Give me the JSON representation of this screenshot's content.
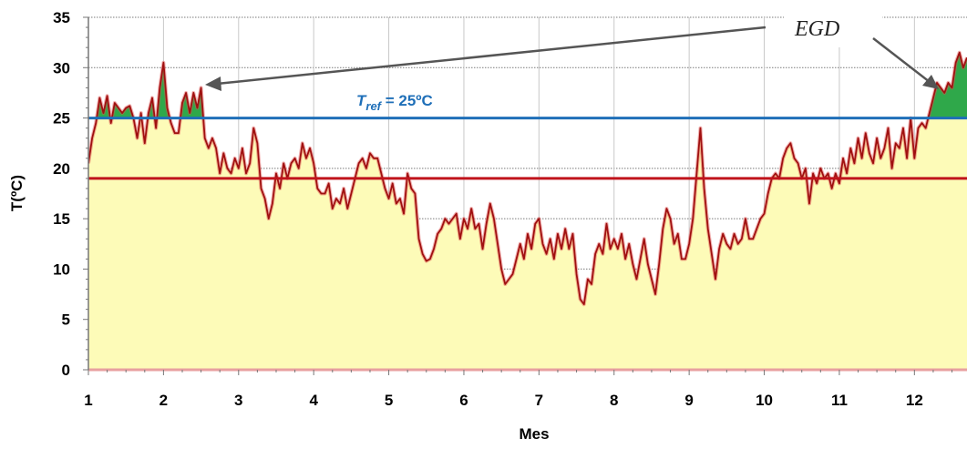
{
  "chart_data": {
    "type": "area",
    "title": "",
    "xlabel": "Mes",
    "ylabel": "T(ºC)",
    "xlim": [
      1,
      12.7
    ],
    "ylim": [
      0,
      35
    ],
    "xticks": [
      1,
      2,
      3,
      4,
      5,
      6,
      7,
      8,
      9,
      10,
      11,
      12
    ],
    "yticks": [
      0,
      5,
      10,
      15,
      20,
      25,
      30,
      35
    ],
    "grid": true,
    "legend": "none",
    "series": [
      {
        "name": "",
        "color": "#a01010",
        "fill": "#fdfbb8",
        "points": [
          [
            1.0,
            20.5
          ],
          [
            1.05,
            23.0
          ],
          [
            1.1,
            24.5
          ],
          [
            1.15,
            27.0
          ],
          [
            1.2,
            25.5
          ],
          [
            1.25,
            27.2
          ],
          [
            1.3,
            24.5
          ],
          [
            1.35,
            26.5
          ],
          [
            1.4,
            26.0
          ],
          [
            1.45,
            25.5
          ],
          [
            1.5,
            26.0
          ],
          [
            1.55,
            26.2
          ],
          [
            1.6,
            25.0
          ],
          [
            1.65,
            23.0
          ],
          [
            1.7,
            25.5
          ],
          [
            1.75,
            22.5
          ],
          [
            1.8,
            25.5
          ],
          [
            1.85,
            27.0
          ],
          [
            1.9,
            24.0
          ],
          [
            1.95,
            28.0
          ],
          [
            2.0,
            30.5
          ],
          [
            2.05,
            26.0
          ],
          [
            2.1,
            24.5
          ],
          [
            2.15,
            23.5
          ],
          [
            2.2,
            23.5
          ],
          [
            2.25,
            26.5
          ],
          [
            2.3,
            27.5
          ],
          [
            2.35,
            25.5
          ],
          [
            2.4,
            27.5
          ],
          [
            2.45,
            26.0
          ],
          [
            2.5,
            28.0
          ],
          [
            2.55,
            23.0
          ],
          [
            2.6,
            22.0
          ],
          [
            2.65,
            23.0
          ],
          [
            2.7,
            22.0
          ],
          [
            2.75,
            19.5
          ],
          [
            2.8,
            21.5
          ],
          [
            2.85,
            20.0
          ],
          [
            2.9,
            19.5
          ],
          [
            2.95,
            21.0
          ],
          [
            3.0,
            20.0
          ],
          [
            3.05,
            22.0
          ],
          [
            3.1,
            19.5
          ],
          [
            3.15,
            20.5
          ],
          [
            3.2,
            24.0
          ],
          [
            3.25,
            22.5
          ],
          [
            3.3,
            18.0
          ],
          [
            3.35,
            17.0
          ],
          [
            3.4,
            15.0
          ],
          [
            3.45,
            16.5
          ],
          [
            3.5,
            19.5
          ],
          [
            3.55,
            18.0
          ],
          [
            3.6,
            20.5
          ],
          [
            3.65,
            19.0
          ],
          [
            3.7,
            20.5
          ],
          [
            3.75,
            21.0
          ],
          [
            3.8,
            20.0
          ],
          [
            3.85,
            22.5
          ],
          [
            3.9,
            21.0
          ],
          [
            3.95,
            22.0
          ],
          [
            4.0,
            20.5
          ],
          [
            4.05,
            18.0
          ],
          [
            4.1,
            17.5
          ],
          [
            4.15,
            17.5
          ],
          [
            4.2,
            18.5
          ],
          [
            4.25,
            16.0
          ],
          [
            4.3,
            17.0
          ],
          [
            4.35,
            16.5
          ],
          [
            4.4,
            18.0
          ],
          [
            4.45,
            16.0
          ],
          [
            4.5,
            17.5
          ],
          [
            4.55,
            19.0
          ],
          [
            4.6,
            20.5
          ],
          [
            4.65,
            21.0
          ],
          [
            4.7,
            20.0
          ],
          [
            4.75,
            21.5
          ],
          [
            4.8,
            21.0
          ],
          [
            4.85,
            21.0
          ],
          [
            4.9,
            19.5
          ],
          [
            4.95,
            18.0
          ],
          [
            5.0,
            17.0
          ],
          [
            5.05,
            18.5
          ],
          [
            5.1,
            16.5
          ],
          [
            5.15,
            17.0
          ],
          [
            5.2,
            15.5
          ],
          [
            5.25,
            19.5
          ],
          [
            5.3,
            18.0
          ],
          [
            5.35,
            17.5
          ],
          [
            5.4,
            13.0
          ],
          [
            5.45,
            11.5
          ],
          [
            5.5,
            10.8
          ],
          [
            5.55,
            11.0
          ],
          [
            5.6,
            12.0
          ],
          [
            5.65,
            13.5
          ],
          [
            5.7,
            14.0
          ],
          [
            5.75,
            15.0
          ],
          [
            5.8,
            14.5
          ],
          [
            5.85,
            15.0
          ],
          [
            5.9,
            15.5
          ],
          [
            5.95,
            13.0
          ],
          [
            6.0,
            15.0
          ],
          [
            6.05,
            14.0
          ],
          [
            6.1,
            16.0
          ],
          [
            6.15,
            14.0
          ],
          [
            6.2,
            14.5
          ],
          [
            6.25,
            12.0
          ],
          [
            6.3,
            14.5
          ],
          [
            6.35,
            16.5
          ],
          [
            6.4,
            15.0
          ],
          [
            6.45,
            12.5
          ],
          [
            6.5,
            10.0
          ],
          [
            6.55,
            8.5
          ],
          [
            6.6,
            9.0
          ],
          [
            6.65,
            9.5
          ],
          [
            6.7,
            11.0
          ],
          [
            6.75,
            12.5
          ],
          [
            6.8,
            11.0
          ],
          [
            6.85,
            13.5
          ],
          [
            6.9,
            12.0
          ],
          [
            6.95,
            14.5
          ],
          [
            7.0,
            15.0
          ],
          [
            7.05,
            12.5
          ],
          [
            7.1,
            11.5
          ],
          [
            7.15,
            13.0
          ],
          [
            7.2,
            11.0
          ],
          [
            7.25,
            13.5
          ],
          [
            7.3,
            12.0
          ],
          [
            7.35,
            14.0
          ],
          [
            7.4,
            12.0
          ],
          [
            7.45,
            13.5
          ],
          [
            7.5,
            9.5
          ],
          [
            7.55,
            7.0
          ],
          [
            7.6,
            6.5
          ],
          [
            7.65,
            9.0
          ],
          [
            7.7,
            8.5
          ],
          [
            7.75,
            11.5
          ],
          [
            7.8,
            12.5
          ],
          [
            7.85,
            11.5
          ],
          [
            7.9,
            14.5
          ],
          [
            7.95,
            12.0
          ],
          [
            8.0,
            13.0
          ],
          [
            8.05,
            12.0
          ],
          [
            8.1,
            13.5
          ],
          [
            8.15,
            11.0
          ],
          [
            8.2,
            12.5
          ],
          [
            8.25,
            10.5
          ],
          [
            8.3,
            9.0
          ],
          [
            8.35,
            11.0
          ],
          [
            8.4,
            13.0
          ],
          [
            8.45,
            10.5
          ],
          [
            8.5,
            9.0
          ],
          [
            8.55,
            7.5
          ],
          [
            8.6,
            10.5
          ],
          [
            8.65,
            14.0
          ],
          [
            8.7,
            16.0
          ],
          [
            8.75,
            15.0
          ],
          [
            8.8,
            12.5
          ],
          [
            8.85,
            13.5
          ],
          [
            8.9,
            11.0
          ],
          [
            8.95,
            11.0
          ],
          [
            9.0,
            12.5
          ],
          [
            9.05,
            15.0
          ],
          [
            9.1,
            19.5
          ],
          [
            9.15,
            24.0
          ],
          [
            9.2,
            18.0
          ],
          [
            9.25,
            14.0
          ],
          [
            9.3,
            11.5
          ],
          [
            9.35,
            9.0
          ],
          [
            9.4,
            12.0
          ],
          [
            9.45,
            13.5
          ],
          [
            9.5,
            12.5
          ],
          [
            9.55,
            12.0
          ],
          [
            9.6,
            13.5
          ],
          [
            9.65,
            12.5
          ],
          [
            9.7,
            13.0
          ],
          [
            9.75,
            15.0
          ],
          [
            9.8,
            13.0
          ],
          [
            9.85,
            13.0
          ],
          [
            9.9,
            14.0
          ],
          [
            9.95,
            15.0
          ],
          [
            10.0,
            15.5
          ],
          [
            10.05,
            17.5
          ],
          [
            10.1,
            19.0
          ],
          [
            10.15,
            19.5
          ],
          [
            10.2,
            19.0
          ],
          [
            10.25,
            21.0
          ],
          [
            10.3,
            22.0
          ],
          [
            10.35,
            22.5
          ],
          [
            10.4,
            21.0
          ],
          [
            10.45,
            20.5
          ],
          [
            10.5,
            19.0
          ],
          [
            10.55,
            20.0
          ],
          [
            10.6,
            16.5
          ],
          [
            10.65,
            19.5
          ],
          [
            10.7,
            18.5
          ],
          [
            10.75,
            20.0
          ],
          [
            10.8,
            19.0
          ],
          [
            10.85,
            19.5
          ],
          [
            10.9,
            18.0
          ],
          [
            10.95,
            19.5
          ],
          [
            11.0,
            18.5
          ],
          [
            11.05,
            21.0
          ],
          [
            11.1,
            19.5
          ],
          [
            11.15,
            22.0
          ],
          [
            11.2,
            20.5
          ],
          [
            11.25,
            23.0
          ],
          [
            11.3,
            21.0
          ],
          [
            11.35,
            23.5
          ],
          [
            11.4,
            21.5
          ],
          [
            11.45,
            20.5
          ],
          [
            11.5,
            23.0
          ],
          [
            11.55,
            21.0
          ],
          [
            11.6,
            22.0
          ],
          [
            11.65,
            24.0
          ],
          [
            11.7,
            20.0
          ],
          [
            11.75,
            22.5
          ],
          [
            11.8,
            22.0
          ],
          [
            11.85,
            24.0
          ],
          [
            11.9,
            21.0
          ],
          [
            11.95,
            25.0
          ],
          [
            12.0,
            21.0
          ],
          [
            12.05,
            24.0
          ],
          [
            12.1,
            24.5
          ],
          [
            12.15,
            24.0
          ],
          [
            12.2,
            25.5
          ],
          [
            12.25,
            27.0
          ],
          [
            12.3,
            28.5
          ],
          [
            12.35,
            28.0
          ],
          [
            12.4,
            27.5
          ],
          [
            12.45,
            28.5
          ],
          [
            12.5,
            28.0
          ],
          [
            12.55,
            30.5
          ],
          [
            12.6,
            31.5
          ],
          [
            12.65,
            30.0
          ],
          [
            12.7,
            31.0
          ]
        ]
      }
    ],
    "reference_lines": [
      {
        "y": 25,
        "color": "#1f6fb8"
      },
      {
        "y": 19,
        "color": "#c0141c"
      }
    ],
    "excess_fill_color": "#2fa84a",
    "annotations": {
      "tref_main": "T",
      "tref_sub": "ref",
      "tref_value": " = 25ºC",
      "egd": "EGD"
    }
  }
}
